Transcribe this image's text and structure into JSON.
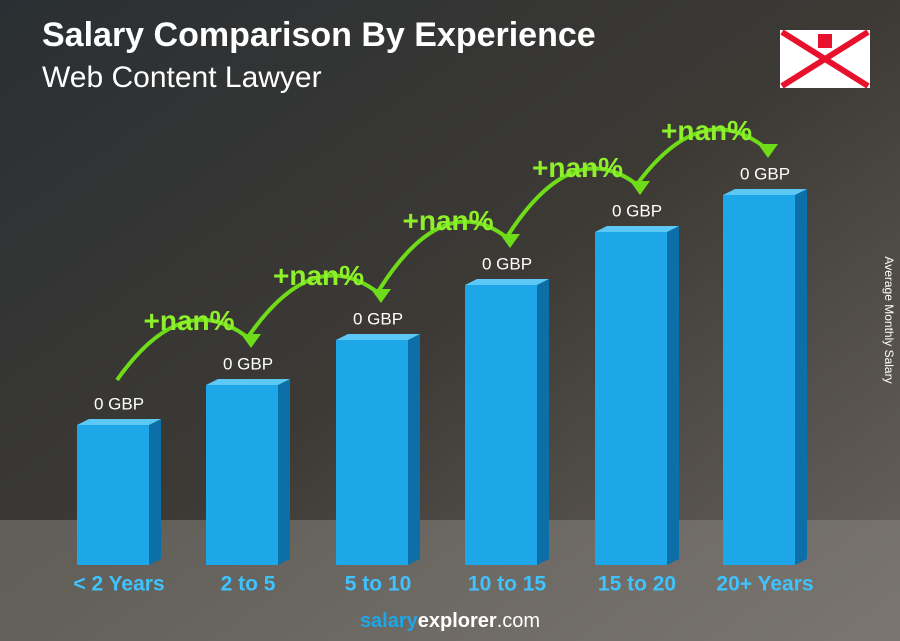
{
  "chart_data": {
    "type": "bar",
    "title": "Salary Comparison By Experience",
    "subtitle": "Web Content Lawyer",
    "y_axis_label": "Average Monthly Salary",
    "categories": [
      "< 2 Years",
      "2 to 5",
      "5 to 10",
      "10 to 15",
      "15 to 20",
      "20+ Years"
    ],
    "values": [
      0,
      0,
      0,
      0,
      0,
      0
    ],
    "value_labels": [
      "0 GBP",
      "0 GBP",
      "0 GBP",
      "0 GBP",
      "0 GBP",
      "0 GBP"
    ],
    "changes": [
      "+nan%",
      "+nan%",
      "+nan%",
      "+nan%",
      "+nan%"
    ],
    "color": "#1ea7e8",
    "footer": {
      "brand": "salary",
      "brand2": "explorer",
      "domain": ".com"
    }
  }
}
